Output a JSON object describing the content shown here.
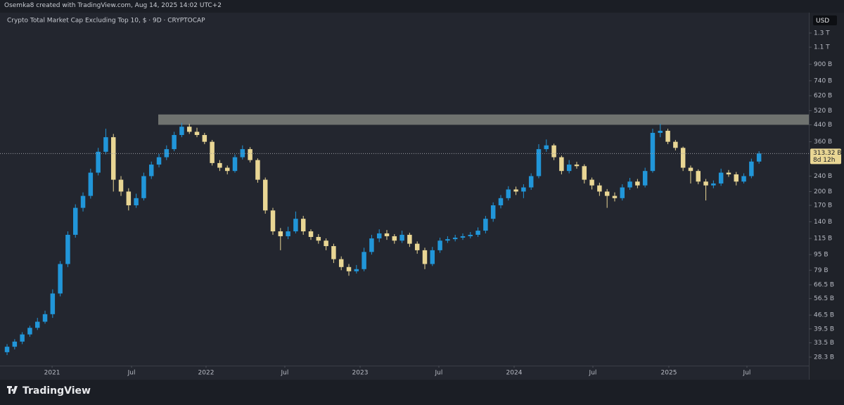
{
  "header": "Osemka8 created with TradingView.com, Aug 14, 2025 14:02 UTC+2",
  "brand": "TradingView",
  "chart_data": {
    "type": "candlestick",
    "title": "Crypto Total Market Cap Excluding Top 10, $ · 9D · CRYPTOCAP",
    "currency": "USD",
    "log_scale": true,
    "grid": false,
    "up_color": "#2196d9",
    "down_color": "#e9d694",
    "zone": {
      "low": 440,
      "high": 497,
      "color": "#8a8c86"
    },
    "last_price_label": "313.32 B",
    "countdown": "8d 12h",
    "ylim": [
      25.6,
      1654
    ],
    "yticks": [
      {
        "value": 1300,
        "label": "1.3 T"
      },
      {
        "value": 1100,
        "label": "1.1 T"
      },
      {
        "value": 900,
        "label": "900 B"
      },
      {
        "value": 740,
        "label": "740 B"
      },
      {
        "value": 620,
        "label": "620 B"
      },
      {
        "value": 520,
        "label": "520 B"
      },
      {
        "value": 440,
        "label": "440 B"
      },
      {
        "value": 360,
        "label": "360 B"
      },
      {
        "value": 240,
        "label": "240 B"
      },
      {
        "value": 200,
        "label": "200 B"
      },
      {
        "value": 170,
        "label": "170 B"
      },
      {
        "value": 140,
        "label": "140 B"
      },
      {
        "value": 115,
        "label": "115 B"
      },
      {
        "value": 95,
        "label": "95 B"
      },
      {
        "value": 79,
        "label": "79 B"
      },
      {
        "value": 66.5,
        "label": "66.5 B"
      },
      {
        "value": 56.5,
        "label": "56.5 B"
      },
      {
        "value": 46.5,
        "label": "46.5 B"
      },
      {
        "value": 39.5,
        "label": "39.5 B"
      },
      {
        "value": 33.5,
        "label": "33.5 B"
      },
      {
        "value": 28.3,
        "label": "28.3 B"
      }
    ],
    "xlim": [
      -0.93,
      105.56
    ],
    "xticks": [
      {
        "value": 5.93,
        "label": "2021"
      },
      {
        "value": 16.39,
        "label": "Jul"
      },
      {
        "value": 26.2,
        "label": "2022"
      },
      {
        "value": 36.57,
        "label": "Jul"
      },
      {
        "value": 46.48,
        "label": "2023"
      },
      {
        "value": 56.85,
        "label": "Jul"
      },
      {
        "value": 66.76,
        "label": "2024"
      },
      {
        "value": 77.13,
        "label": "Jul"
      },
      {
        "value": 87.13,
        "label": "2025"
      },
      {
        "value": 97.41,
        "label": "Jul"
      }
    ],
    "ohlc": [
      [
        30,
        33,
        29,
        32
      ],
      [
        32,
        35,
        31,
        34
      ],
      [
        34,
        38,
        33,
        37
      ],
      [
        37,
        41,
        36,
        40
      ],
      [
        40,
        45,
        39,
        43
      ],
      [
        43,
        49,
        42,
        47
      ],
      [
        47,
        63,
        45,
        60
      ],
      [
        60,
        88,
        58,
        85
      ],
      [
        85,
        125,
        82,
        120
      ],
      [
        120,
        172,
        116,
        165
      ],
      [
        165,
        198,
        158,
        190
      ],
      [
        190,
        262,
        184,
        250
      ],
      [
        250,
        335,
        242,
        320
      ],
      [
        320,
        420,
        310,
        380
      ],
      [
        380,
        395,
        200,
        230
      ],
      [
        230,
        240,
        190,
        200
      ],
      [
        200,
        208,
        160,
        170
      ],
      [
        170,
        195,
        165,
        185
      ],
      [
        185,
        250,
        180,
        240
      ],
      [
        240,
        285,
        232,
        275
      ],
      [
        275,
        312,
        266,
        300
      ],
      [
        300,
        345,
        290,
        330
      ],
      [
        330,
        405,
        322,
        390
      ],
      [
        390,
        450,
        380,
        430
      ],
      [
        430,
        445,
        395,
        405
      ],
      [
        405,
        425,
        380,
        390
      ],
      [
        390,
        400,
        350,
        360
      ],
      [
        360,
        368,
        272,
        280
      ],
      [
        280,
        290,
        255,
        265
      ],
      [
        265,
        272,
        245,
        255
      ],
      [
        255,
        310,
        250,
        300
      ],
      [
        300,
        345,
        292,
        330
      ],
      [
        330,
        338,
        282,
        290
      ],
      [
        290,
        296,
        222,
        230
      ],
      [
        230,
        236,
        154,
        160
      ],
      [
        160,
        165,
        120,
        125
      ],
      [
        125,
        130,
        100,
        118
      ],
      [
        118,
        132,
        114,
        125
      ],
      [
        125,
        158,
        122,
        145
      ],
      [
        145,
        150,
        120,
        125
      ],
      [
        125,
        128,
        113,
        117
      ],
      [
        117,
        121,
        108,
        112
      ],
      [
        112,
        115,
        100,
        105
      ],
      [
        105,
        108,
        86,
        90
      ],
      [
        90,
        93,
        79,
        82
      ],
      [
        82,
        85,
        74,
        78
      ],
      [
        78,
        84,
        76,
        80
      ],
      [
        80,
        103,
        78,
        98
      ],
      [
        98,
        120,
        95,
        115
      ],
      [
        115,
        128,
        110,
        122
      ],
      [
        122,
        127,
        113,
        118
      ],
      [
        118,
        121,
        108,
        112
      ],
      [
        112,
        126,
        109,
        120
      ],
      [
        120,
        123,
        104,
        108
      ],
      [
        108,
        111,
        96,
        100
      ],
      [
        100,
        103,
        80,
        85
      ],
      [
        85,
        104,
        83,
        100
      ],
      [
        100,
        116,
        97,
        112
      ],
      [
        112,
        118,
        109,
        114
      ],
      [
        114,
        120,
        111,
        116
      ],
      [
        116,
        122,
        113,
        118
      ],
      [
        118,
        124,
        115,
        120
      ],
      [
        120,
        131,
        117,
        126
      ],
      [
        126,
        150,
        122,
        145
      ],
      [
        145,
        176,
        140,
        170
      ],
      [
        170,
        192,
        164,
        185
      ],
      [
        185,
        213,
        180,
        205
      ],
      [
        205,
        212,
        192,
        200
      ],
      [
        200,
        218,
        185,
        210
      ],
      [
        210,
        248,
        204,
        240
      ],
      [
        240,
        350,
        234,
        330
      ],
      [
        330,
        370,
        320,
        345
      ],
      [
        345,
        352,
        290,
        300
      ],
      [
        300,
        306,
        245,
        255
      ],
      [
        255,
        290,
        248,
        275
      ],
      [
        275,
        284,
        262,
        270
      ],
      [
        270,
        276,
        220,
        230
      ],
      [
        230,
        236,
        205,
        215
      ],
      [
        215,
        222,
        190,
        200
      ],
      [
        200,
        206,
        165,
        190
      ],
      [
        190,
        198,
        178,
        185
      ],
      [
        185,
        218,
        180,
        210
      ],
      [
        210,
        235,
        204,
        225
      ],
      [
        225,
        232,
        208,
        215
      ],
      [
        215,
        265,
        210,
        255
      ],
      [
        255,
        420,
        250,
        400
      ],
      [
        400,
        445,
        380,
        410
      ],
      [
        410,
        420,
        350,
        360
      ],
      [
        360,
        368,
        325,
        335
      ],
      [
        335,
        340,
        255,
        265
      ],
      [
        265,
        272,
        220,
        255
      ],
      [
        255,
        260,
        218,
        225
      ],
      [
        225,
        232,
        180,
        215
      ],
      [
        215,
        228,
        208,
        220
      ],
      [
        220,
        262,
        214,
        250
      ],
      [
        250,
        258,
        238,
        245
      ],
      [
        245,
        252,
        215,
        225
      ],
      [
        225,
        248,
        220,
        240
      ],
      [
        240,
        295,
        234,
        285
      ],
      [
        285,
        322,
        278,
        313.32
      ]
    ]
  }
}
